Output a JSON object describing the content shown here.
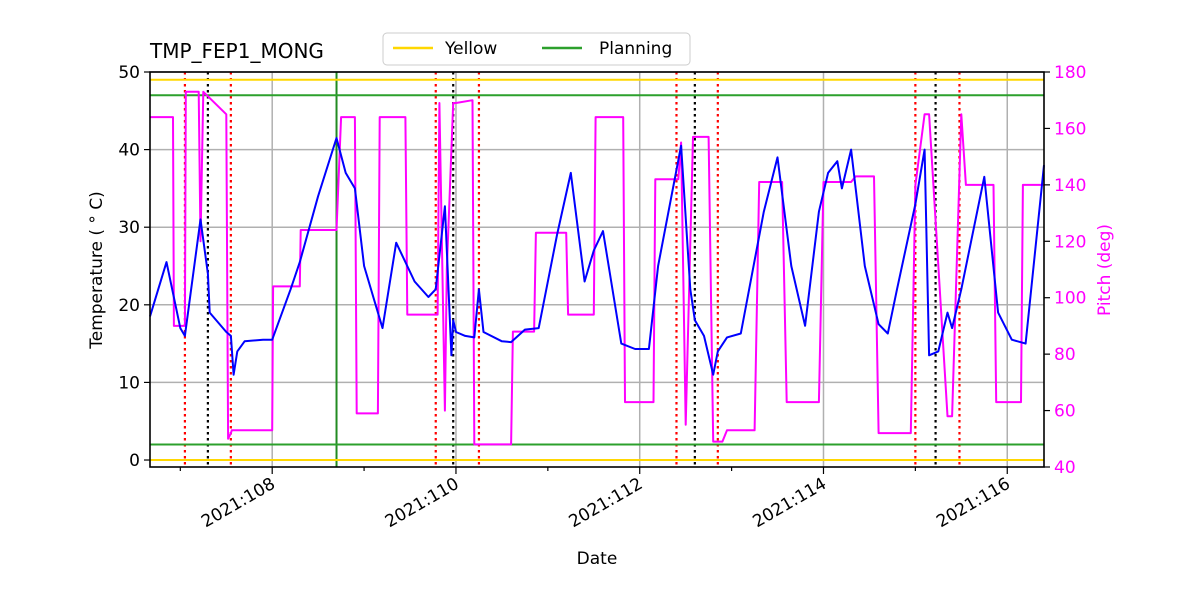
{
  "chart_data": {
    "type": "line",
    "title": "TMP_FEP1_MONG",
    "xlabel": "Date",
    "ylabel": "Temperature ($^\\circ$C)",
    "ylabel_display": "Temperature ( ° C)",
    "y2label": "Pitch (deg)",
    "xlim": [
      106.67,
      116.4
    ],
    "ylim": [
      -0.9,
      50
    ],
    "y2lim": [
      40,
      180
    ],
    "grid": true,
    "legend_position": "upper center (above plot)",
    "x_ticks": [
      {
        "value": 108,
        "label": "2021:108"
      },
      {
        "value": 110,
        "label": "2021:110"
      },
      {
        "value": 112,
        "label": "2021:112"
      },
      {
        "value": 114,
        "label": "2021:114"
      },
      {
        "value": 116,
        "label": "2021:116"
      }
    ],
    "y_ticks": [
      0,
      10,
      20,
      30,
      40,
      50
    ],
    "y2_ticks": [
      40,
      60,
      80,
      100,
      120,
      140,
      160,
      180
    ],
    "legend": [
      {
        "label": "Yellow",
        "color": "#ffd700"
      },
      {
        "label": "Planning",
        "color": "#2ca02c"
      }
    ],
    "limits": {
      "yellow_hi": 49.0,
      "yellow_lo": 0.0,
      "planning_hi": 47.0,
      "planning_lo": 2.0
    },
    "vlines": {
      "planning_now": 108.7,
      "red_dotted": [
        107.05,
        107.55,
        109.78,
        110.25,
        112.4,
        112.85,
        115.0,
        115.48
      ],
      "black_dotted": [
        107.3,
        109.97,
        112.6,
        115.22
      ]
    },
    "series": [
      {
        "name": "TMP_FEP1_MONG",
        "axis": "left",
        "color": "#0000ff",
        "x": [
          106.67,
          106.85,
          107.0,
          107.05,
          107.22,
          107.3,
          107.32,
          107.5,
          107.55,
          107.58,
          107.62,
          107.7,
          107.9,
          108.0,
          108.2,
          108.3,
          108.5,
          108.7,
          108.8,
          108.9,
          109.0,
          109.2,
          109.35,
          109.55,
          109.7,
          109.78,
          109.88,
          109.95,
          109.97,
          110.0,
          110.1,
          110.2,
          110.25,
          110.3,
          110.5,
          110.6,
          110.75,
          110.9,
          111.1,
          111.25,
          111.4,
          111.5,
          111.6,
          111.8,
          111.95,
          112.1,
          112.2,
          112.45,
          112.55,
          112.6,
          112.7,
          112.8,
          112.85,
          112.95,
          113.1,
          113.35,
          113.5,
          113.65,
          113.8,
          113.95,
          114.05,
          114.15,
          114.2,
          114.3,
          114.45,
          114.6,
          114.7,
          114.8,
          115.0,
          115.1,
          115.15,
          115.25,
          115.35,
          115.4,
          115.5,
          115.75,
          115.9,
          116.05,
          116.2,
          116.4
        ],
        "values": [
          18.5,
          25.5,
          17.0,
          16.0,
          31.0,
          24.0,
          19.0,
          16.5,
          16.0,
          11.0,
          14.0,
          15.3,
          15.5,
          15.5,
          22.0,
          25.5,
          34.0,
          41.5,
          37.0,
          35.0,
          25.0,
          17.0,
          28.0,
          23.0,
          21.0,
          22.0,
          32.7,
          13.5,
          18.0,
          16.5,
          16.0,
          15.8,
          22.0,
          16.5,
          15.3,
          15.2,
          16.8,
          17.0,
          29.0,
          37.0,
          23.0,
          27.0,
          29.5,
          15.0,
          14.3,
          14.3,
          25.0,
          40.5,
          22.0,
          18.0,
          16.0,
          11.0,
          14.0,
          15.8,
          16.3,
          32.0,
          39.0,
          25.0,
          17.3,
          32.0,
          37.0,
          38.5,
          35.0,
          40.0,
          25.0,
          17.5,
          16.3,
          22.0,
          33.0,
          40.0,
          13.5,
          14.0,
          19.0,
          17.0,
          22.0,
          36.5,
          19.0,
          15.5,
          15.0,
          38.0
        ]
      },
      {
        "name": "Pitch",
        "axis": "right",
        "color": "#ff00ff",
        "x": [
          106.67,
          106.92,
          106.93,
          107.05,
          107.06,
          107.2,
          107.22,
          107.25,
          107.5,
          107.52,
          107.55,
          107.56,
          107.6,
          107.65,
          108.0,
          108.01,
          108.3,
          108.31,
          108.7,
          108.75,
          108.9,
          108.92,
          109.15,
          109.17,
          109.45,
          109.47,
          109.8,
          109.82,
          109.88,
          109.9,
          109.97,
          110.0,
          110.18,
          110.2,
          110.25,
          110.27,
          110.6,
          110.62,
          110.85,
          110.87,
          111.2,
          111.22,
          111.5,
          111.52,
          111.82,
          111.84,
          112.15,
          112.17,
          112.42,
          112.45,
          112.5,
          112.58,
          112.75,
          112.8,
          112.9,
          112.95,
          113.25,
          113.3,
          113.55,
          113.6,
          113.95,
          114.0,
          114.3,
          114.35,
          114.55,
          114.6,
          114.95,
          115.0,
          115.1,
          115.15,
          115.35,
          115.4,
          115.5,
          115.55,
          115.85,
          115.88,
          116.15,
          116.17,
          116.4
        ],
        "values": [
          164,
          164,
          90,
          90,
          173,
          173,
          120,
          173,
          165,
          50,
          52,
          53,
          53,
          53,
          53,
          104,
          104,
          124,
          124,
          164,
          164,
          59,
          59,
          164,
          164,
          94,
          94,
          169,
          60,
          110,
          169,
          169,
          170,
          48,
          48,
          48,
          48,
          88,
          88,
          123,
          123,
          94,
          94,
          164,
          164,
          63,
          63,
          142,
          142,
          155,
          55,
          157,
          157,
          49,
          49,
          53,
          53,
          141,
          141,
          63,
          63,
          141,
          141,
          143,
          143,
          52,
          52,
          140,
          165,
          165,
          58,
          58,
          165,
          140,
          140,
          63,
          63,
          140,
          140
        ]
      }
    ]
  }
}
